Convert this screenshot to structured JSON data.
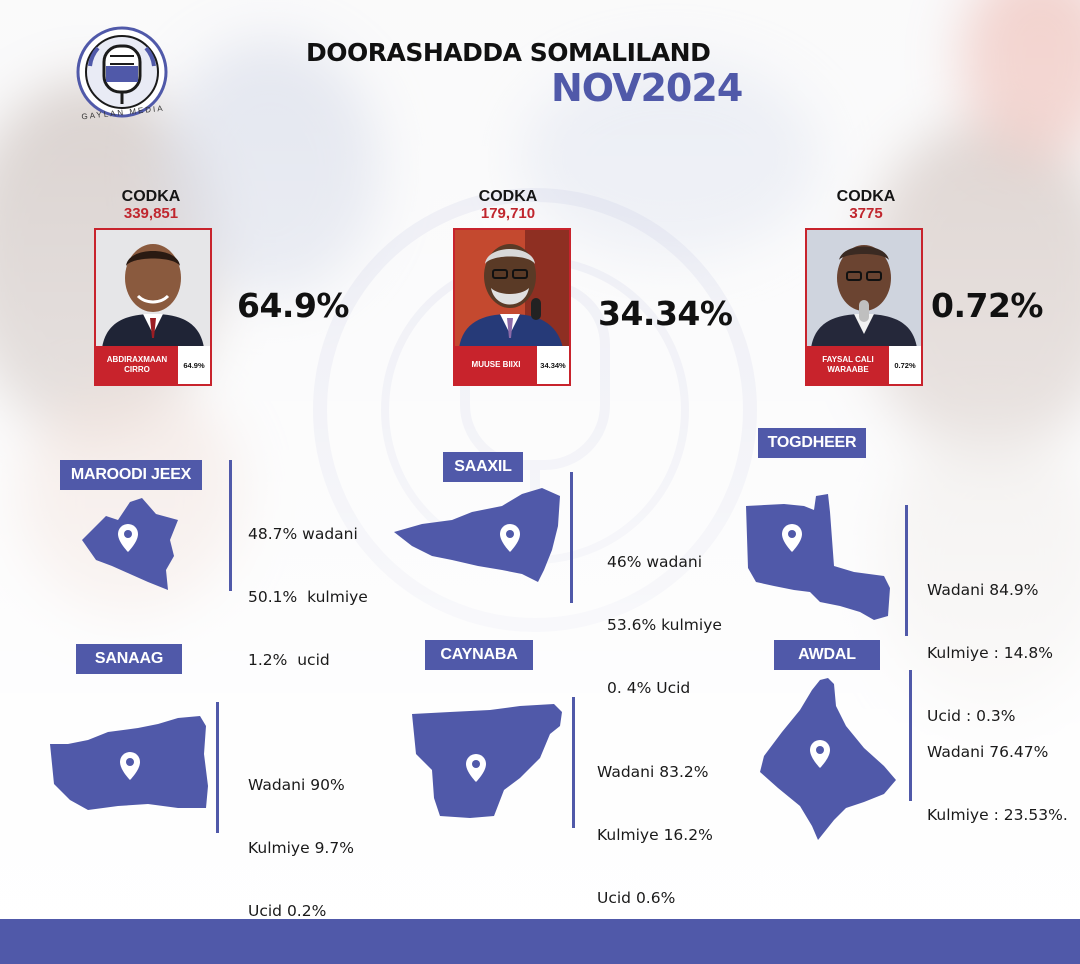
{
  "header": {
    "title": "DOORASHADDA SOMALILAND",
    "subtitle": "NOV2024",
    "logo_text": "GAYLAN MEDIA"
  },
  "colors": {
    "accent": "#5059a9",
    "red": "#c8232c",
    "text": "#111111"
  },
  "candidates": [
    {
      "label": "CODKA",
      "votes": "339,851",
      "name": "ABDIRAXMAAN CIRRO",
      "card_pct": "64.9%",
      "big_pct": "64.9%"
    },
    {
      "label": "CODKA",
      "votes": "179,710",
      "name": "MUUSE BIIXI",
      "card_pct": "34.34%",
      "big_pct": "34.34%"
    },
    {
      "label": "CODKA",
      "votes": "3775",
      "name": "FAYSAL CALI WARAABE",
      "card_pct": "0.72%",
      "big_pct": "0.72%"
    }
  ],
  "regions": [
    {
      "name": "MAROODI JEEX",
      "icon": "map-pin-icon",
      "lines": [
        "48.7% wadani",
        "50.1%  kulmiye",
        "1.2%  ucid"
      ]
    },
    {
      "name": "SAAXIL",
      "icon": "map-pin-icon",
      "lines": [
        "46% wadani",
        "53.6% kulmiye",
        "0. 4% Ucid"
      ]
    },
    {
      "name": "TOGDHEER",
      "icon": "map-pin-icon",
      "lines": [
        "Wadani 84.9%",
        "Kulmiye : 14.8%",
        "Ucid : 0.3%"
      ]
    },
    {
      "name": "SANAAG",
      "icon": "map-pin-icon",
      "lines": [
        "Wadani 90%",
        "Kulmiye 9.7%",
        "Ucid 0.2%"
      ]
    },
    {
      "name": "CAYNABA",
      "icon": "map-pin-icon",
      "lines": [
        "Wadani 83.2%",
        "Kulmiye 16.2%",
        "Ucid 0.6%"
      ]
    },
    {
      "name": "AWDAL",
      "icon": "map-pin-icon",
      "lines": [
        "Wadani 76.47%",
        "Kulmiye : 23.53%."
      ]
    }
  ]
}
